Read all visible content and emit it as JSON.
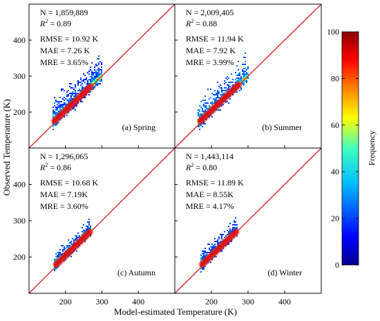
{
  "figure": {
    "xlabel": "Model-estimated Temperature (K)",
    "ylabel": "Observed Temperature (K)",
    "colorbar_label": "Frequency",
    "colorbar_ticks": [
      "0",
      "20",
      "40",
      "60",
      "80",
      "100"
    ],
    "colorbar_range": [
      0,
      100
    ],
    "colormap": [
      "#00008f",
      "#0000ff",
      "#00bfff",
      "#40ffbf",
      "#ffff00",
      "#ff8000",
      "#ff0000",
      "#8b0000"
    ],
    "identity_line_color": "#d62728"
  },
  "chart_data": [
    {
      "type": "heatmap",
      "label": "(a) Spring",
      "stats": {
        "n": "N = 1,859,889",
        "r2_value": "= 0.89",
        "rmse": "RMSE = 10.92 K",
        "mae": "MAE = 7.26 K",
        "mre": "MRE = 3.65%"
      },
      "xlim": [
        100,
        500
      ],
      "ylim": [
        100,
        500
      ],
      "xticks": [],
      "yticks": [
        "200",
        "300",
        "400"
      ],
      "x_range": [
        165,
        300
      ],
      "ridge_end": 270,
      "spread_below": 26,
      "spread_above": 70
    },
    {
      "type": "heatmap",
      "label": "(b) Summer",
      "stats": {
        "n": "N = 2,009,405",
        "r2_value": "= 0.88",
        "rmse": "RMSE = 11.94  K",
        "mae": "MAE = 7.92  K",
        "mre": "MRE = 3.99%"
      },
      "xlim": [
        100,
        500
      ],
      "ylim": [
        100,
        500
      ],
      "xticks": [],
      "yticks": [],
      "x_range": [
        165,
        300
      ],
      "ridge_end": 275,
      "spread_below": 28,
      "spread_above": 75
    },
    {
      "type": "heatmap",
      "label": "(c) Autumn",
      "stats": {
        "n": "N = 1,296,065",
        "r2_value": "= 0.86",
        "rmse": "RMSE = 10.68 K",
        "mae": "MAE = 7.19K",
        "mre": "MRE = 3.60%"
      },
      "xlim": [
        100,
        500
      ],
      "ylim": [
        100,
        500
      ],
      "xticks": [
        "200",
        "300",
        "400"
      ],
      "yticks": [
        "200",
        "300",
        "400"
      ],
      "x_range": [
        170,
        270
      ],
      "ridge_end": 268,
      "spread_below": 20,
      "spread_above": 40
    },
    {
      "type": "heatmap",
      "label": "(d) Winter",
      "stats": {
        "n": "N = 1,443,114",
        "r2_value": "= 0.80",
        "rmse": "RMSE = 11.89 K",
        "mae": "MAE = 8.55K",
        "mre": "MRE = 4.17%"
      },
      "xlim": [
        100,
        500
      ],
      "ylim": [
        100,
        500
      ],
      "xticks": [
        "200",
        "300",
        "400"
      ],
      "yticks": [],
      "x_range": [
        170,
        270
      ],
      "ridge_end": 268,
      "spread_below": 22,
      "spread_above": 45
    }
  ]
}
